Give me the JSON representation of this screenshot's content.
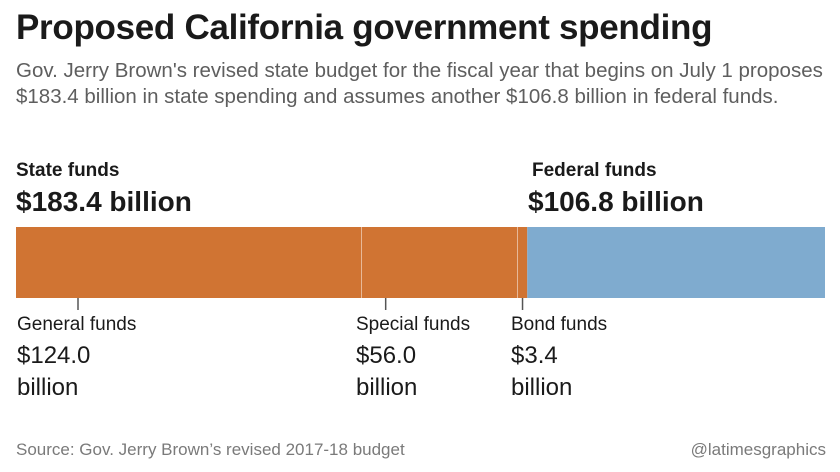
{
  "title": "Proposed California government spending",
  "subtitle": "Gov. Jerry Brown's revised state budget for the fiscal year that begins on July 1 proposes $183.4 billion in state spending and assumes another $106.8 billion in federal funds.",
  "colors": {
    "state": "#d07433",
    "federal": "#7fabcf",
    "divider": "#ffffff",
    "tick": "#555555"
  },
  "chart_data": {
    "type": "bar",
    "orientation": "horizontal-stacked",
    "unit": "billion",
    "groups": [
      {
        "label": "State funds",
        "total_label": "$183.4 billion",
        "total": 183.4
      },
      {
        "label": "Federal funds",
        "total_label": "$106.8 billion",
        "total": 106.8
      }
    ],
    "segments": [
      {
        "name": "General funds",
        "value": 124.0,
        "value_label": "$124.0",
        "unit_label": "billion",
        "group": "State funds"
      },
      {
        "name": "Special funds",
        "value": 56.0,
        "value_label": "$56.0",
        "unit_label": "billion",
        "group": "State funds"
      },
      {
        "name": "Bond funds",
        "value": 3.4,
        "value_label": "$3.4",
        "unit_label": "billion",
        "group": "State funds"
      },
      {
        "name": "",
        "value": 106.8,
        "group": "Federal funds"
      }
    ]
  },
  "source": "Source: Gov. Jerry Brown’s revised 2017-18 budget",
  "credit": "@latimesgraphics"
}
